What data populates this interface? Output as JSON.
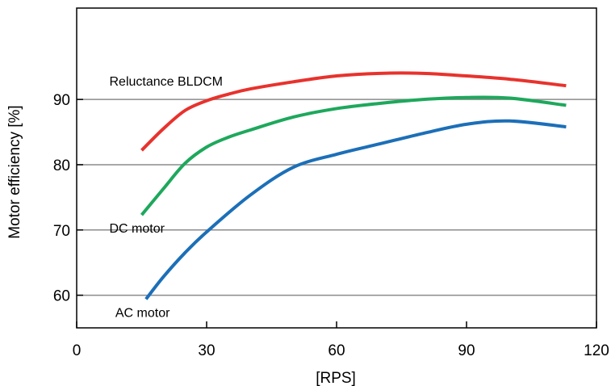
{
  "chart_data": {
    "type": "line",
    "title": "",
    "xlabel": "[RPS]",
    "ylabel": "Motor efficiency [%]",
    "xlim": [
      0,
      120
    ],
    "ylim": [
      55,
      104
    ],
    "xticks": [
      0,
      30,
      60,
      90,
      120
    ],
    "yticks": [
      60,
      70,
      80,
      90
    ],
    "grid": "horizontal",
    "legend": "none",
    "series": [
      {
        "name": "Reluctance BLDCM",
        "color": "#e8322d",
        "points": [
          [
            15,
            82.2
          ],
          [
            20,
            85.5
          ],
          [
            25,
            88.3
          ],
          [
            30,
            89.8
          ],
          [
            35,
            90.8
          ],
          [
            40,
            91.6
          ],
          [
            50,
            92.7
          ],
          [
            60,
            93.6
          ],
          [
            70,
            94.0
          ],
          [
            80,
            94.0
          ],
          [
            90,
            93.6
          ],
          [
            100,
            93.1
          ],
          [
            113,
            92.1
          ]
        ]
      },
      {
        "name": "DC motor",
        "color": "#1ea85c",
        "points": [
          [
            15,
            72.3
          ],
          [
            20,
            76.3
          ],
          [
            25,
            80.2
          ],
          [
            30,
            82.7
          ],
          [
            35,
            84.2
          ],
          [
            40,
            85.3
          ],
          [
            50,
            87.3
          ],
          [
            60,
            88.6
          ],
          [
            70,
            89.4
          ],
          [
            80,
            90.0
          ],
          [
            90,
            90.3
          ],
          [
            100,
            90.2
          ],
          [
            113,
            89.1
          ]
        ]
      },
      {
        "name": "AC motor",
        "color": "#1c6fb8",
        "points": [
          [
            16,
            59.4
          ],
          [
            20,
            62.8
          ],
          [
            25,
            66.5
          ],
          [
            30,
            69.7
          ],
          [
            40,
            75.3
          ],
          [
            50,
            79.6
          ],
          [
            60,
            81.6
          ],
          [
            70,
            83.2
          ],
          [
            80,
            84.8
          ],
          [
            90,
            86.2
          ],
          [
            100,
            86.7
          ],
          [
            113,
            85.8
          ]
        ]
      }
    ]
  }
}
